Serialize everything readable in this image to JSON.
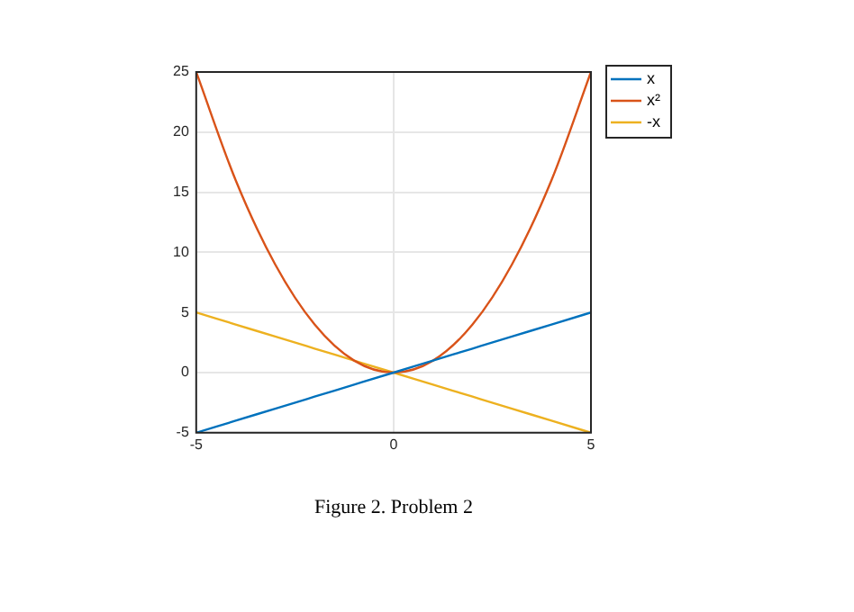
{
  "chart_data": {
    "type": "line",
    "x": [
      -5,
      -4,
      -3,
      -2,
      -1,
      0,
      1,
      2,
      3,
      4,
      5
    ],
    "series": [
      {
        "name": "x",
        "color": "#0072bd",
        "values": [
          -5,
          -4,
          -3,
          -2,
          -1,
          0,
          1,
          2,
          3,
          4,
          5
        ]
      },
      {
        "name": "x²",
        "color": "#d95319",
        "values": [
          25,
          16,
          9,
          4,
          1,
          0,
          1,
          4,
          9,
          16,
          25
        ]
      },
      {
        "name": "-x",
        "color": "#edb120",
        "values": [
          5,
          4,
          3,
          2,
          1,
          0,
          -1,
          -2,
          -3,
          -4,
          -5
        ]
      }
    ],
    "xlim": [
      -5,
      5
    ],
    "xticks": [
      -5,
      0,
      5
    ],
    "ylim": [
      -5,
      25
    ],
    "yticks": [
      -5,
      0,
      5,
      10,
      15,
      20,
      25
    ],
    "grid": true,
    "legend": "top right",
    "marker": "none",
    "line_style": "solid",
    "annotations": [
      "Figure 2. Problem 2"
    ]
  }
}
